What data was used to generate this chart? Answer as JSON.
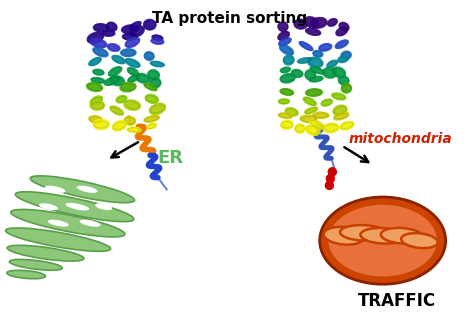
{
  "title": "TA protein sorting",
  "title_fontsize": 11,
  "er_label": "ER",
  "er_label_color": "#5cb85c",
  "er_label_fontsize": 13,
  "mito_label": "mitochondria",
  "mito_label_color": "#cc2200",
  "mito_label_fontsize": 10,
  "traffic_label": "TRAFFIC",
  "traffic_label_fontsize": 12,
  "traffic_label_color": "black",
  "bg_color": "white",
  "er_fill_color": "#8dc87a",
  "er_edge_color": "#5a9e4a",
  "mito_outer_color": "#cc4400",
  "mito_inner_color": "#e8703a",
  "mito_cristae_color": "#c84000",
  "mito_lumen_color": "#f0a060",
  "orange_helix_color": "#e87800",
  "blue_helix_color": "#2244cc",
  "light_blue_color": "#6688cc",
  "right_blue_helix": "#3355bb",
  "red_dots_color": "#cc0000",
  "yellow_link_color": "#ddcc00",
  "protein_colors": [
    "#220088",
    "#3333cc",
    "#1166bb",
    "#008899",
    "#009944",
    "#44aa00",
    "#88cc00",
    "#aacc00",
    "#cccc00",
    "#eeee00"
  ],
  "protein2_colors": [
    "#330077",
    "#2244cc",
    "#1166bb",
    "#008899",
    "#009944",
    "#44aa00",
    "#88cc00",
    "#aacc00",
    "#cccc00",
    "#eeee00"
  ]
}
